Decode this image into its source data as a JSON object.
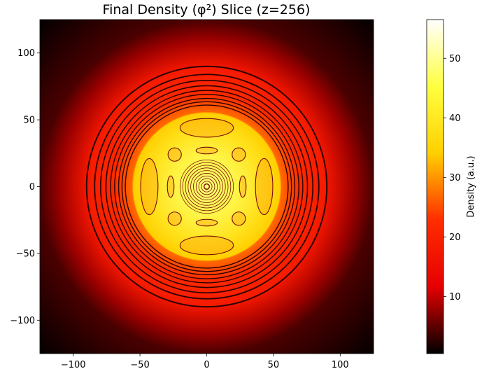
{
  "chart_data": {
    "type": "heatmap",
    "title": "Final Density (φ²) Slice (z=256)",
    "xlabel": "",
    "ylabel": "",
    "xlim": [
      -125,
      125
    ],
    "ylim": [
      -125,
      125
    ],
    "x_ticks": [
      -100,
      -50,
      0,
      50,
      100
    ],
    "y_ticks": [
      -100,
      -50,
      0,
      50,
      100
    ],
    "x_tick_labels": [
      "−100",
      "−50",
      "0",
      "50",
      "100"
    ],
    "y_tick_labels": [
      "−100",
      "−50",
      "0",
      "50",
      "100"
    ],
    "grid": false,
    "colormap": "hot",
    "colormap_stops": [
      "#000000",
      "#e60000",
      "#ff2d00",
      "#ffd000",
      "#ffff40",
      "#ffffff"
    ],
    "contour_color": "#3a0000",
    "colorbar": {
      "label": "Density (a.u.)",
      "range": [
        0.4,
        56.5
      ],
      "ticks": [
        10,
        20,
        30,
        40,
        50
      ],
      "tick_labels": [
        "10",
        "20",
        "30",
        "40",
        "50"
      ]
    },
    "radial_profile": [
      {
        "r": 0,
        "density": 52
      },
      {
        "r": 20,
        "density": 48
      },
      {
        "r": 40,
        "density": 40
      },
      {
        "r": 55,
        "density": 34
      },
      {
        "r": 56,
        "density": 27
      },
      {
        "r": 70,
        "density": 22
      },
      {
        "r": 89,
        "density": 18
      },
      {
        "r": 90,
        "density": 17
      },
      {
        "r": 110,
        "density": 8
      },
      {
        "r": 125,
        "density": 4
      },
      {
        "r": 177,
        "density": 0.5
      }
    ],
    "contour_rings": [
      {
        "r": 2,
        "width": 1.4
      },
      {
        "r": 4,
        "width": 0.8
      },
      {
        "r": 6,
        "width": 0.8
      },
      {
        "r": 8,
        "width": 0.8
      },
      {
        "r": 10,
        "width": 0.8
      },
      {
        "r": 12,
        "width": 0.8
      },
      {
        "r": 14,
        "width": 0.8
      },
      {
        "r": 16,
        "width": 0.8
      },
      {
        "r": 18,
        "width": 0.8
      },
      {
        "r": 20,
        "width": 0.8
      },
      {
        "r": 61,
        "width": 1.4
      },
      {
        "r": 63.5,
        "width": 1.4
      },
      {
        "r": 66,
        "width": 1.4
      },
      {
        "r": 69,
        "width": 1.4
      },
      {
        "r": 72,
        "width": 1.4
      },
      {
        "r": 75.5,
        "width": 1.6
      },
      {
        "r": 79.5,
        "width": 1.6
      },
      {
        "r": 84,
        "width": 1.8
      },
      {
        "r": 90,
        "width": 2
      }
    ],
    "blob_features": [
      {
        "cx": 0,
        "cy": 44,
        "rx": 20,
        "ry": 7
      },
      {
        "cx": 0,
        "cy": -44,
        "rx": 20,
        "ry": 7
      },
      {
        "cx": -43,
        "cy": 0,
        "rx": 6.5,
        "ry": 21
      },
      {
        "cx": 43,
        "cy": 0,
        "rx": 6.5,
        "ry": 21
      },
      {
        "cx": 0,
        "cy": 27,
        "rx": 8,
        "ry": 2.5
      },
      {
        "cx": 0,
        "cy": -27,
        "rx": 8,
        "ry": 2.5
      },
      {
        "cx": -27,
        "cy": 0,
        "rx": 2.5,
        "ry": 8
      },
      {
        "cx": 27,
        "cy": 0,
        "rx": 2.5,
        "ry": 8
      },
      {
        "cx": -24,
        "cy": 24,
        "rx": 5,
        "ry": 5
      },
      {
        "cx": 24,
        "cy": 24,
        "rx": 5,
        "ry": 5
      },
      {
        "cx": -24,
        "cy": -24,
        "rx": 5,
        "ry": 5
      },
      {
        "cx": 24,
        "cy": -24,
        "rx": 5,
        "ry": 5
      }
    ]
  }
}
